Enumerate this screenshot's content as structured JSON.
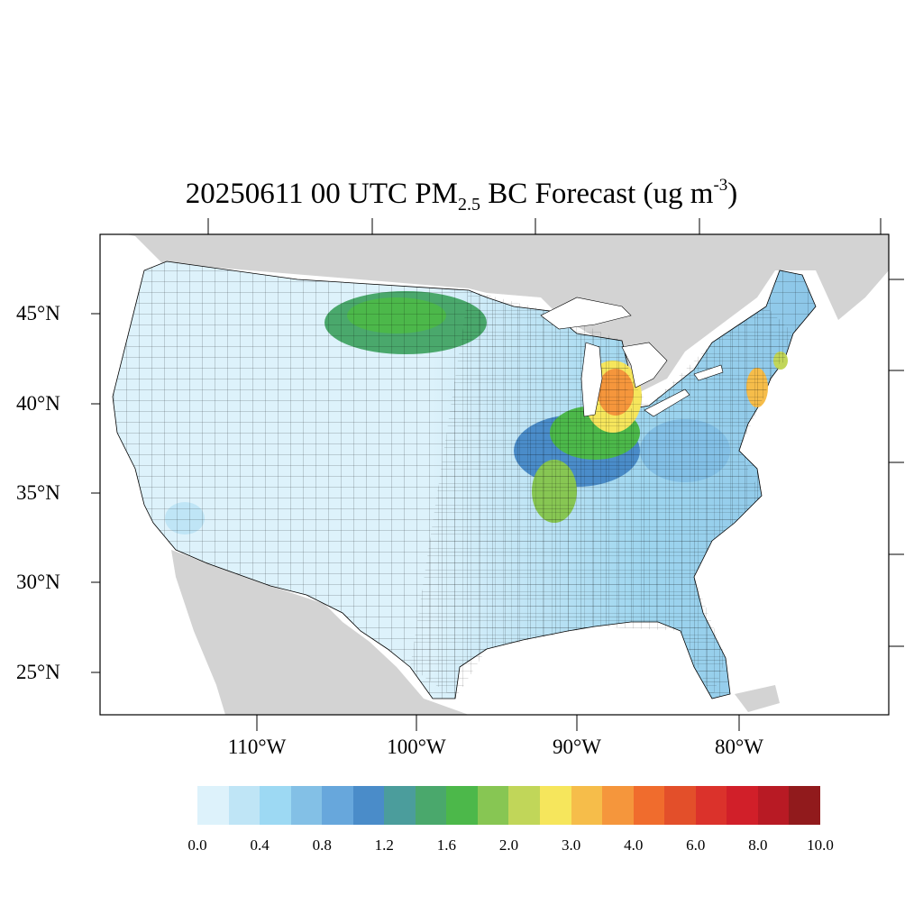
{
  "title": {
    "prefix": "20250611 00 UTC PM",
    "subscript": "2.5",
    "middle": " BC Forecast (ug m",
    "superscript": "-3",
    "suffix": ")"
  },
  "map": {
    "projection": "lambert-conformal",
    "region": "Contiguous United States (county boundaries)",
    "land_outside_domain_color": "#d3d3d3",
    "water_color": "#ffffff",
    "boundary_color": "#000000"
  },
  "lat_labels": [
    "45°N",
    "40°N",
    "35°N",
    "30°N",
    "25°N"
  ],
  "lon_labels": [
    "110°W",
    "100°W",
    "90°W",
    "80°W"
  ],
  "colorbar": {
    "colors": [
      "#ddf2fb",
      "#bfe5f6",
      "#9dd9f3",
      "#83c0e6",
      "#67a7dc",
      "#4a8cc9",
      "#4b9d9c",
      "#4aa86c",
      "#4cb84a",
      "#87c653",
      "#c1d659",
      "#f6e65c",
      "#f6bd4a",
      "#f5963c",
      "#f06c2d",
      "#e34f2a",
      "#db322b",
      "#d11f29",
      "#b81a24",
      "#911a1c"
    ],
    "labels": [
      "0.0",
      "0.4",
      "0.8",
      "1.2",
      "1.6",
      "2.0",
      "3.0",
      "4.0",
      "6.0",
      "8.0",
      "10.0"
    ]
  }
}
